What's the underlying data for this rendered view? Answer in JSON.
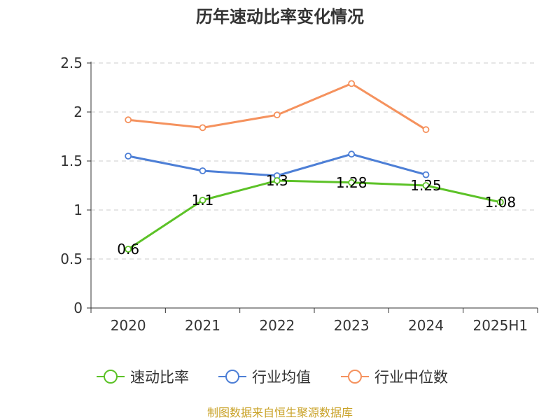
{
  "chart_data": {
    "type": "line",
    "title": "历年速动比率变化情况",
    "categories": [
      "2020",
      "2021",
      "2022",
      "2023",
      "2024",
      "2025H1"
    ],
    "ylim": [
      0,
      2.5
    ],
    "yticks": [
      "0",
      "0.5",
      "1",
      "1.5",
      "2",
      "2.5"
    ],
    "grid": true,
    "legend_position": "bottom",
    "series": [
      {
        "name": "速动比率",
        "color": "#5cc227",
        "values": [
          0.6,
          1.1,
          1.3,
          1.28,
          1.25,
          1.08
        ],
        "labels": [
          "0.6",
          "1.1",
          "1.3",
          "1.28",
          "1.25",
          "1.08"
        ]
      },
      {
        "name": "行业均值",
        "color": "#4d7fd6",
        "values": [
          1.55,
          1.4,
          1.35,
          1.57,
          1.36,
          null
        ]
      },
      {
        "name": "行业中位数",
        "color": "#f5925e",
        "values": [
          1.92,
          1.84,
          1.97,
          2.29,
          1.82,
          null
        ]
      }
    ]
  },
  "source_text": "制图数据来自恒生聚源数据库"
}
